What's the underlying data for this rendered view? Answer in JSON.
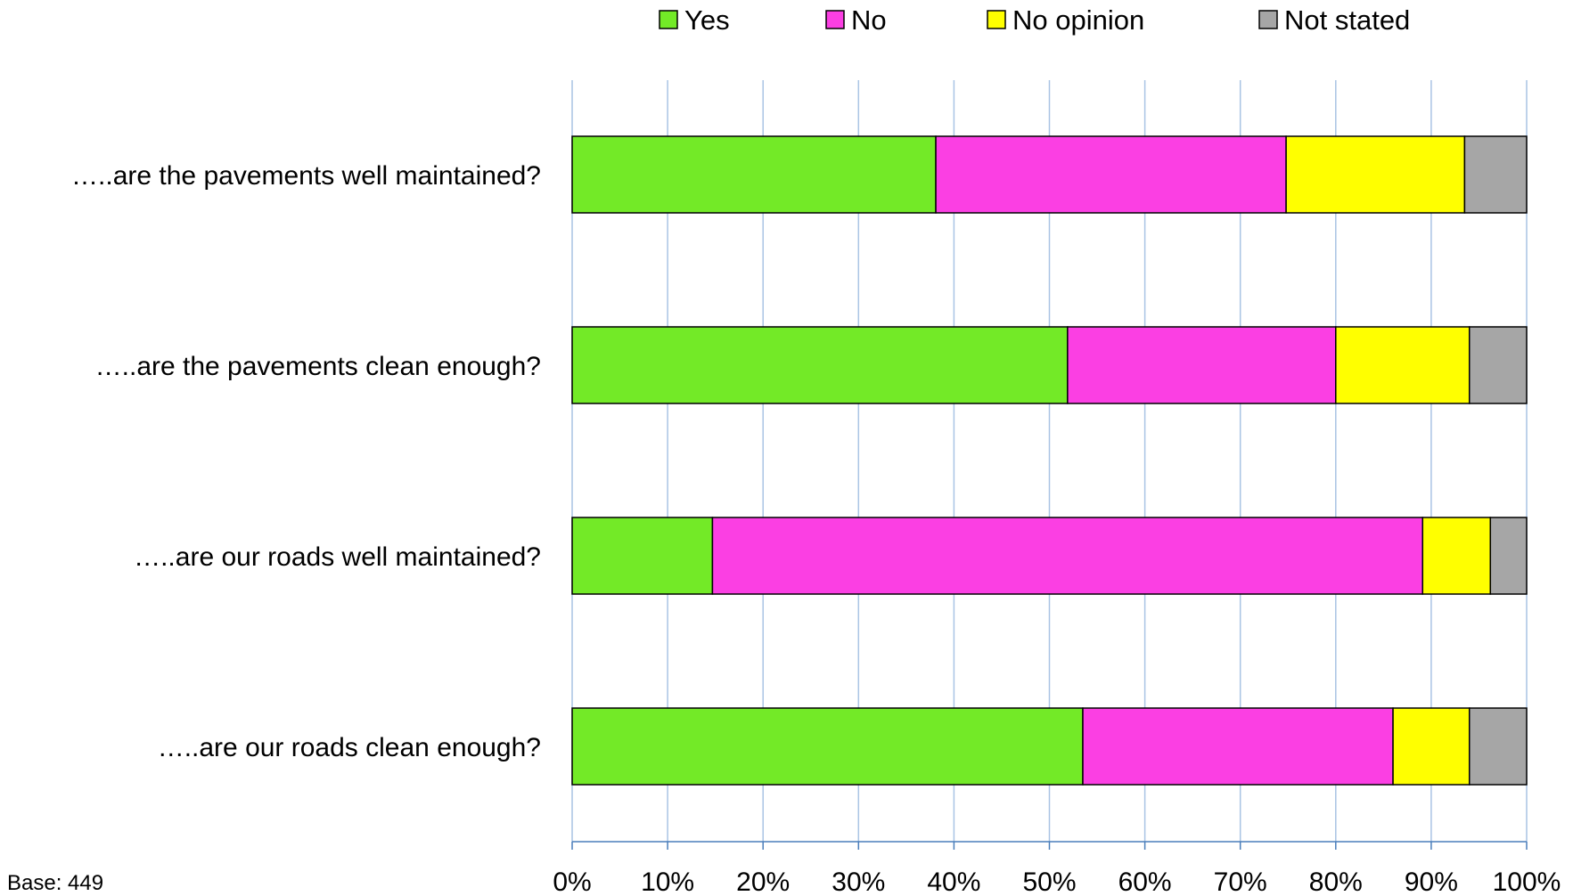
{
  "chart_data": {
    "type": "bar",
    "orientation": "horizontal",
    "stacked": "percent",
    "categories": [
      "…..are the pavements well maintained?",
      "…..are the pavements clean enough?",
      "…..are our roads well maintained?",
      "…..are our roads clean enough?"
    ],
    "series": [
      {
        "name": "Yes",
        "color": "#73EA27",
        "values": [
          38.1,
          51.9,
          14.7,
          53.5
        ]
      },
      {
        "name": "No",
        "color": "#FB3FE3",
        "values": [
          36.7,
          28.1,
          74.4,
          32.5
        ]
      },
      {
        "name": "No opinion",
        "color": "#FFFF00",
        "values": [
          18.7,
          14.0,
          7.1,
          8.0
        ]
      },
      {
        "name": "Not stated",
        "color": "#A6A6A6",
        "values": [
          6.5,
          6.0,
          3.8,
          6.0
        ]
      }
    ],
    "xlim": [
      0,
      100
    ],
    "xticks": [
      "0%",
      "10%",
      "20%",
      "30%",
      "40%",
      "50%",
      "60%",
      "70%",
      "80%",
      "90%",
      "100%"
    ],
    "grid": true,
    "legend_position": "top",
    "title": "",
    "xlabel": "",
    "ylabel": ""
  },
  "footnote": "Base: 449"
}
